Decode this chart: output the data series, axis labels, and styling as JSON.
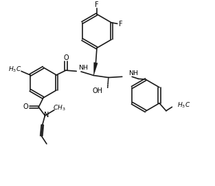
{
  "bg_color": "#ffffff",
  "line_color": "#1a1a1a",
  "line_width": 1.2,
  "figsize": [
    3.13,
    2.7
  ],
  "dpi": 100,
  "xlim": [
    0,
    10
  ],
  "ylim": [
    0,
    8.6
  ]
}
